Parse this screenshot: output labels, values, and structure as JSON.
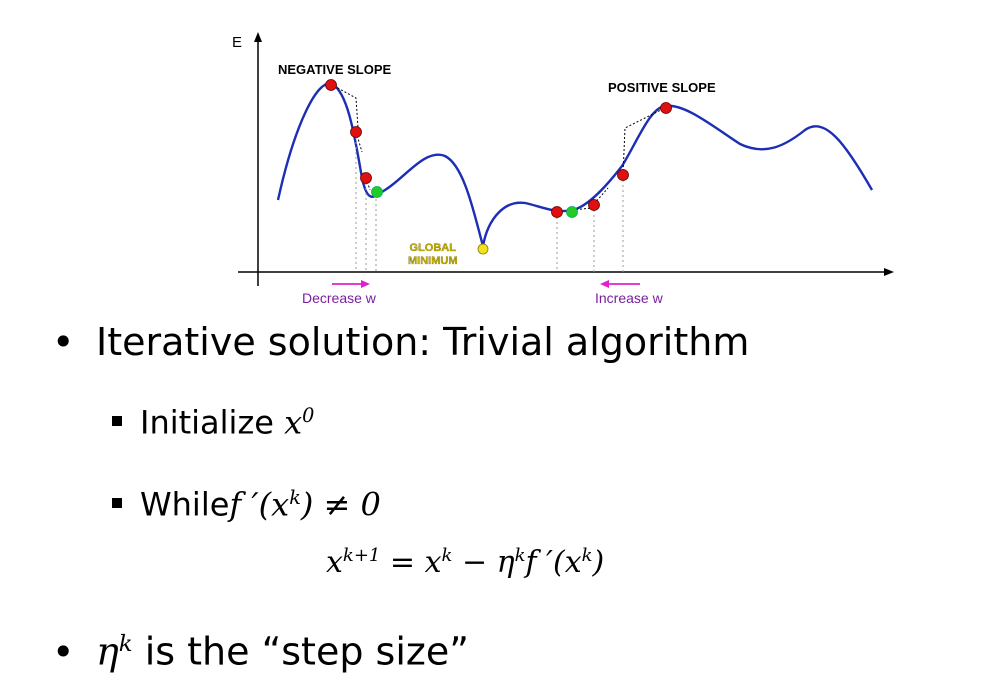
{
  "figure": {
    "axis_label": "E",
    "negative_slope_label": "NEGATIVE SLOPE",
    "positive_slope_label": "POSITIVE SLOPE",
    "global_minimum_line1": "GLOBAL",
    "global_minimum_line2": "MINIMUM",
    "decrease_label": "Decrease w",
    "increase_label": "Increase w",
    "colors": {
      "curve": "#1c2fb4",
      "red_point": "#e01010",
      "green_point": "#22cc22",
      "yellow_point": "#f2e21c",
      "arrow": "#e020d0"
    }
  },
  "bullets": {
    "bullet1": "Iterative solution:  Trivial algorithm",
    "init_text": "Initialize ",
    "init_math": "x",
    "init_sup": "0",
    "while_text": "While",
    "while_math": "f ′(x",
    "while_sup": "k",
    "while_rest": ") ≠ 0",
    "update_lhs": "x",
    "update_lhs_sup": "k+1",
    "update_mid": " = x",
    "update_mid_sup": "k",
    "update_minus": " − η",
    "update_eta_sup": "k",
    "update_tail": "f ′(x",
    "update_tail_sup": "k",
    "update_close": ")",
    "bullet2_eta": "η",
    "bullet2_sup": "k",
    "bullet2_text": " is the “step size”"
  }
}
